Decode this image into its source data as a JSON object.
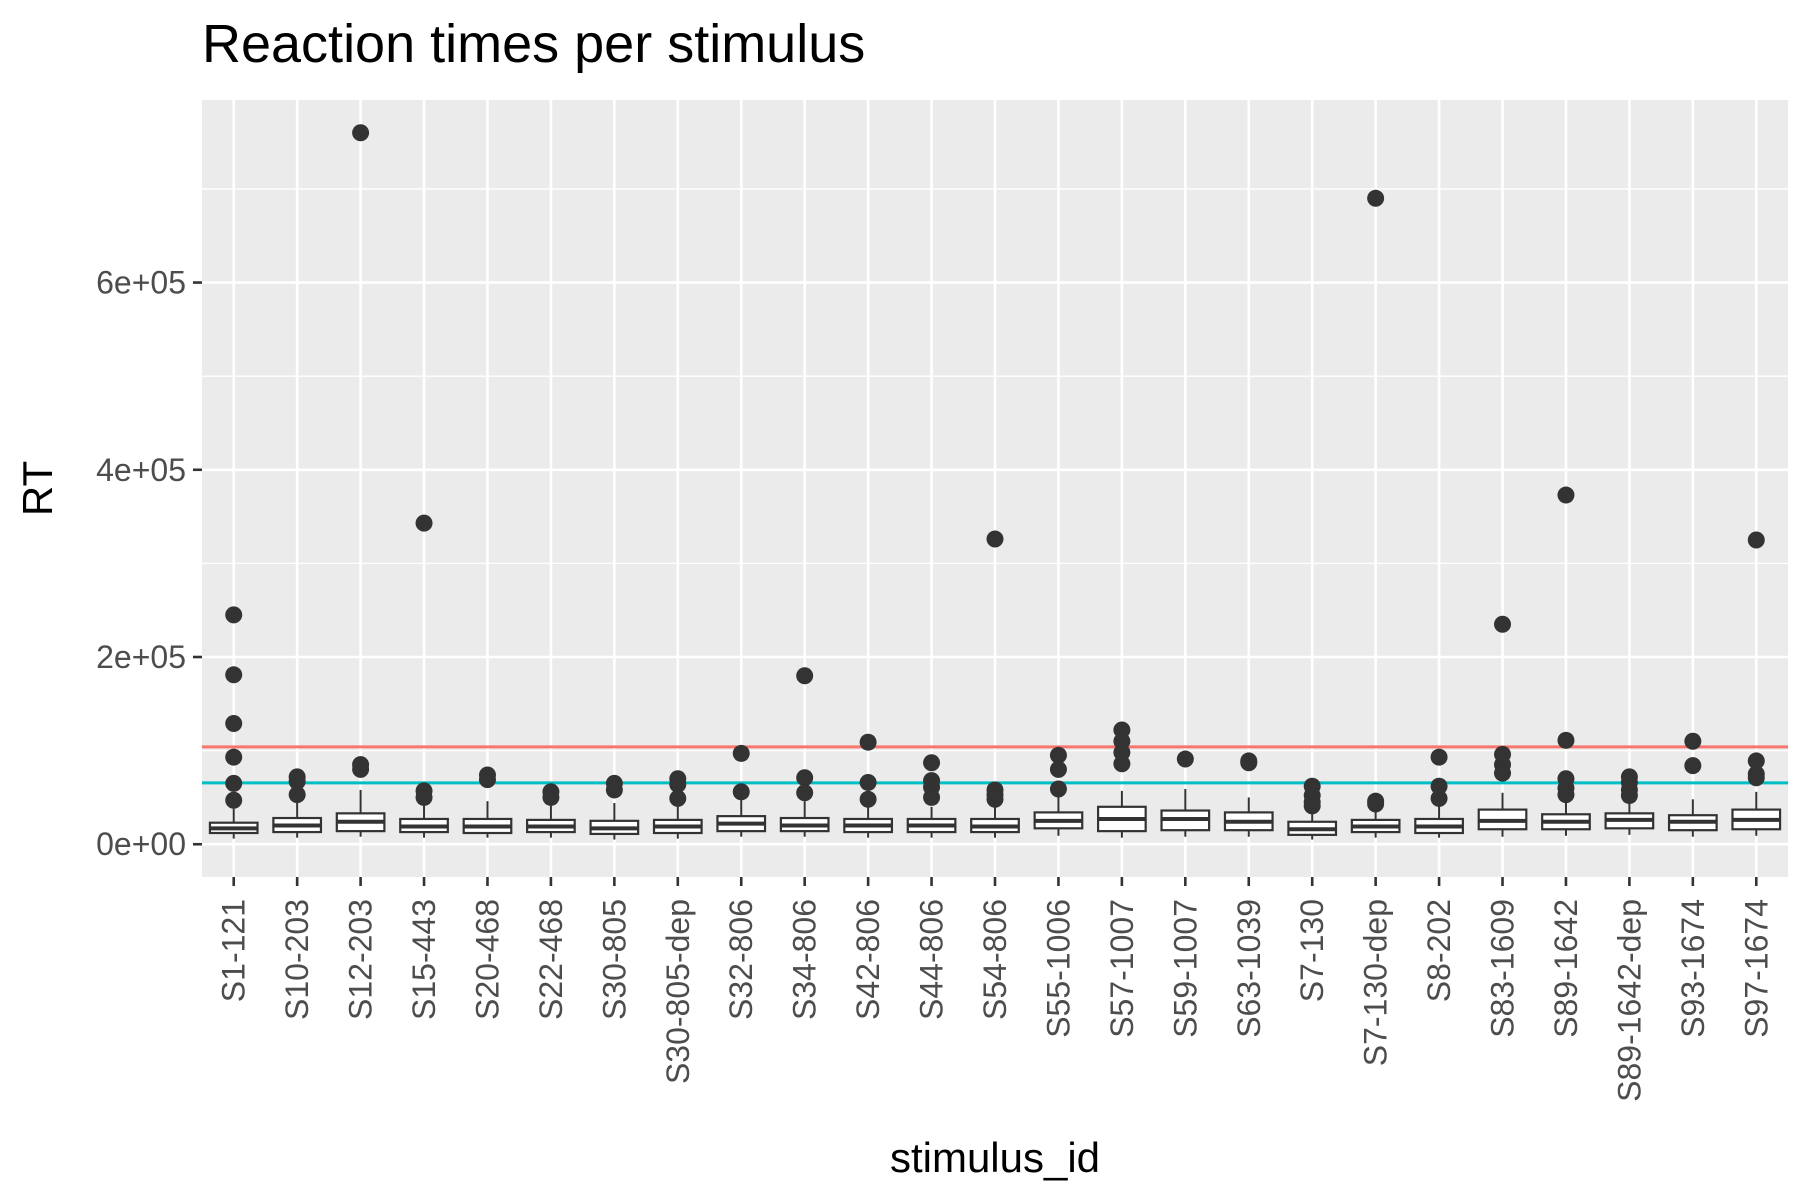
{
  "chart_data": {
    "type": "box",
    "title": "Reaction times per stimulus",
    "xlabel": "stimulus_id",
    "ylabel": "RT",
    "ylim": [
      -35000,
      795000
    ],
    "yticks": [
      0,
      200000,
      400000,
      600000
    ],
    "ytick_labels": [
      "0e+00",
      "2e+05",
      "4e+05",
      "6e+05"
    ],
    "grid": true,
    "reference_lines": [
      {
        "value": 104000,
        "color": "#f8766d"
      },
      {
        "value": 65500,
        "color": "#00bfc4"
      }
    ],
    "box_fill": "#ffffff",
    "box_stroke": "#333333",
    "panel_background": "#ebebeb",
    "categories": [
      "S1-121",
      "S10-203",
      "S12-203",
      "S15-443",
      "S20-468",
      "S22-468",
      "S30-805",
      "S30-805-dep",
      "S32-806",
      "S34-806",
      "S42-806",
      "S44-806",
      "S54-806",
      "S55-1006",
      "S57-1007",
      "S59-1007",
      "S63-1039",
      "S7-130",
      "S7-130-dep",
      "S8-202",
      "S83-1609",
      "S89-1642",
      "S89-1642-dep",
      "S93-1674",
      "S97-1674"
    ],
    "boxes": [
      {
        "q1": 12000,
        "median": 17000,
        "q3": 23000,
        "whisker_low": 6000,
        "whisker_high": 38000,
        "outliers": [
          245000,
          181000,
          129000,
          93000,
          65000,
          47000
        ]
      },
      {
        "q1": 13000,
        "median": 20000,
        "q3": 28000,
        "whisker_low": 7000,
        "whisker_high": 48000,
        "outliers": [
          72000,
          67000,
          53000
        ]
      },
      {
        "q1": 14000,
        "median": 24000,
        "q3": 33000,
        "whisker_low": 8000,
        "whisker_high": 58000,
        "outliers": [
          760000,
          85000,
          80000
        ]
      },
      {
        "q1": 13000,
        "median": 19000,
        "q3": 27000,
        "whisker_low": 7000,
        "whisker_high": 46000,
        "outliers": [
          343000,
          57000,
          50000
        ]
      },
      {
        "q1": 12000,
        "median": 19000,
        "q3": 27000,
        "whisker_low": 7000,
        "whisker_high": 46000,
        "outliers": [
          74000,
          69000
        ]
      },
      {
        "q1": 13000,
        "median": 19000,
        "q3": 26000,
        "whisker_low": 7000,
        "whisker_high": 43000,
        "outliers": [
          56000,
          50000
        ]
      },
      {
        "q1": 11000,
        "median": 17000,
        "q3": 25000,
        "whisker_low": 5000,
        "whisker_high": 44000,
        "outliers": [
          65000,
          58000
        ]
      },
      {
        "q1": 12000,
        "median": 19000,
        "q3": 26000,
        "whisker_low": 6000,
        "whisker_high": 42000,
        "outliers": [
          70000,
          64000,
          49000
        ]
      },
      {
        "q1": 14000,
        "median": 22000,
        "q3": 30000,
        "whisker_low": 8000,
        "whisker_high": 48000,
        "outliers": [
          97000,
          56000
        ]
      },
      {
        "q1": 14000,
        "median": 20000,
        "q3": 28000,
        "whisker_low": 8000,
        "whisker_high": 46000,
        "outliers": [
          180000,
          71000,
          55000
        ]
      },
      {
        "q1": 13000,
        "median": 20000,
        "q3": 27000,
        "whisker_low": 7000,
        "whisker_high": 42000,
        "outliers": [
          109000,
          66000,
          48000
        ]
      },
      {
        "q1": 13000,
        "median": 20000,
        "q3": 27000,
        "whisker_low": 7000,
        "whisker_high": 40000,
        "outliers": [
          87000,
          68000,
          61000,
          50000
        ]
      },
      {
        "q1": 13000,
        "median": 19000,
        "q3": 27000,
        "whisker_low": 7000,
        "whisker_high": 40000,
        "outliers": [
          326000,
          58000,
          53000,
          48000
        ]
      },
      {
        "q1": 17000,
        "median": 25000,
        "q3": 34000,
        "whisker_low": 9000,
        "whisker_high": 54000,
        "outliers": [
          95000,
          80000,
          59000
        ]
      },
      {
        "q1": 14000,
        "median": 27000,
        "q3": 40000,
        "whisker_low": 7000,
        "whisker_high": 57000,
        "outliers": [
          122000,
          110000,
          98000,
          86000
        ]
      },
      {
        "q1": 15000,
        "median": 27000,
        "q3": 36000,
        "whisker_low": 8000,
        "whisker_high": 59000,
        "outliers": [
          91000
        ]
      },
      {
        "q1": 15000,
        "median": 24000,
        "q3": 34000,
        "whisker_low": 8000,
        "whisker_high": 50000,
        "outliers": [
          89000,
          87000
        ]
      },
      {
        "q1": 10000,
        "median": 16000,
        "q3": 24000,
        "whisker_low": 5000,
        "whisker_high": 37000,
        "outliers": [
          62000,
          52000,
          45000,
          41000
        ]
      },
      {
        "q1": 13000,
        "median": 19000,
        "q3": 26000,
        "whisker_low": 7000,
        "whisker_high": 35000,
        "outliers": [
          690000,
          46000,
          43000
        ]
      },
      {
        "q1": 12000,
        "median": 19000,
        "q3": 27000,
        "whisker_low": 7000,
        "whisker_high": 42000,
        "outliers": [
          93000,
          62000,
          49000
        ]
      },
      {
        "q1": 16000,
        "median": 25000,
        "q3": 37000,
        "whisker_low": 8000,
        "whisker_high": 55000,
        "outliers": [
          235000,
          96000,
          85000,
          76000
        ]
      },
      {
        "q1": 16000,
        "median": 24000,
        "q3": 32000,
        "whisker_low": 9000,
        "whisker_high": 49000,
        "outliers": [
          373000,
          111000,
          70000,
          60000,
          53000
        ]
      },
      {
        "q1": 17000,
        "median": 26000,
        "q3": 33000,
        "whisker_low": 10000,
        "whisker_high": 47000,
        "outliers": [
          72000,
          66000,
          58000,
          52000
        ]
      },
      {
        "q1": 15000,
        "median": 24000,
        "q3": 31000,
        "whisker_low": 8000,
        "whisker_high": 48000,
        "outliers": [
          110000,
          84000
        ]
      },
      {
        "q1": 16000,
        "median": 26000,
        "q3": 37000,
        "whisker_low": 9000,
        "whisker_high": 56000,
        "outliers": [
          325000,
          89000,
          75000,
          71000
        ]
      }
    ]
  }
}
